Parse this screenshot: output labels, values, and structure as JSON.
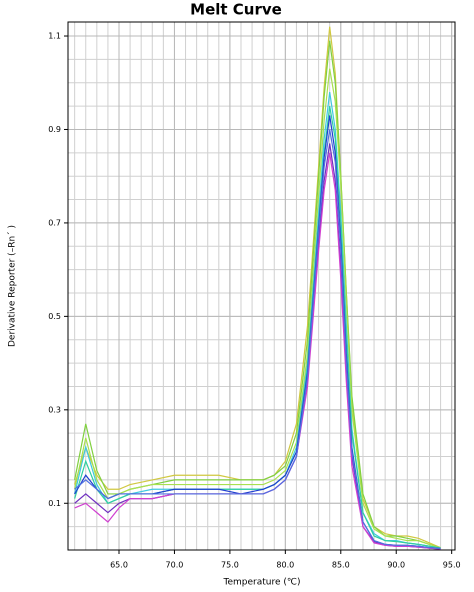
{
  "chart_data": {
    "type": "line",
    "title": "Melt Curve",
    "x_label": "Temperature (℃)",
    "y_label": "Derivative Reporter (–Rn´ )",
    "xlim": [
      60.4,
      95.3
    ],
    "ylim": [
      0.0,
      1.13
    ],
    "xticks": [
      {
        "value": 65,
        "label": "65.0"
      },
      {
        "value": 70,
        "label": "70.0"
      },
      {
        "value": 75,
        "label": "75.0"
      },
      {
        "value": 80,
        "label": "80.0"
      },
      {
        "value": 85,
        "label": "85.0"
      },
      {
        "value": 90,
        "label": "90.0"
      },
      {
        "value": 95,
        "label": "95.0"
      }
    ],
    "yticks": [
      0.1,
      0.3,
      0.5,
      0.7,
      0.9,
      1.1
    ],
    "minor_xticks": [
      61,
      62,
      63,
      64,
      65,
      66,
      67,
      68,
      69,
      70,
      71,
      72,
      73,
      74,
      75,
      76,
      77,
      78,
      79,
      80,
      81,
      82,
      83,
      84,
      85,
      86,
      87,
      88,
      89,
      90,
      91,
      92,
      93,
      94,
      95
    ],
    "minor_yticks": [
      0.05,
      0.1,
      0.15,
      0.2,
      0.25,
      0.3,
      0.35,
      0.4,
      0.45,
      0.5,
      0.55,
      0.6,
      0.65,
      0.7,
      0.75,
      0.8,
      0.85,
      0.9,
      0.95,
      1.0,
      1.05,
      1.1
    ],
    "grid": true,
    "x": [
      61,
      62,
      63,
      64,
      65,
      66,
      68,
      70,
      72,
      74,
      76,
      78,
      79,
      80,
      81,
      82,
      83,
      83.5,
      84,
      84.5,
      85,
      85.5,
      86,
      87,
      88,
      89,
      90,
      91,
      92,
      93,
      94
    ],
    "series": [
      {
        "color": "#d0c840",
        "values": [
          0.14,
          0.22,
          0.16,
          0.13,
          0.13,
          0.14,
          0.15,
          0.16,
          0.16,
          0.16,
          0.15,
          0.15,
          0.16,
          0.19,
          0.27,
          0.48,
          0.82,
          0.99,
          1.12,
          1.02,
          0.8,
          0.55,
          0.32,
          0.11,
          0.05,
          0.035,
          0.03,
          0.03,
          0.025,
          0.015,
          0.005
        ]
      },
      {
        "color": "#80d040",
        "values": [
          0.15,
          0.27,
          0.17,
          0.12,
          0.12,
          0.13,
          0.14,
          0.15,
          0.15,
          0.15,
          0.15,
          0.15,
          0.16,
          0.18,
          0.25,
          0.45,
          0.8,
          0.97,
          1.09,
          1.0,
          0.8,
          0.55,
          0.33,
          0.12,
          0.05,
          0.03,
          0.03,
          0.025,
          0.02,
          0.012,
          0.005
        ]
      },
      {
        "color": "#a8e050",
        "values": [
          0.13,
          0.24,
          0.15,
          0.11,
          0.12,
          0.13,
          0.14,
          0.14,
          0.14,
          0.14,
          0.14,
          0.14,
          0.15,
          0.17,
          0.23,
          0.42,
          0.76,
          0.92,
          1.03,
          0.96,
          0.78,
          0.53,
          0.3,
          0.1,
          0.045,
          0.03,
          0.025,
          0.02,
          0.02,
          0.012,
          0.005
        ]
      },
      {
        "color": "#40c8e0",
        "values": [
          0.12,
          0.22,
          0.14,
          0.1,
          0.11,
          0.12,
          0.13,
          0.13,
          0.13,
          0.13,
          0.13,
          0.13,
          0.14,
          0.16,
          0.22,
          0.4,
          0.72,
          0.88,
          0.98,
          0.9,
          0.72,
          0.48,
          0.26,
          0.08,
          0.035,
          0.02,
          0.02,
          0.015,
          0.012,
          0.008,
          0.004
        ]
      },
      {
        "color": "#30d0a0",
        "values": [
          0.11,
          0.19,
          0.13,
          0.1,
          0.11,
          0.12,
          0.12,
          0.13,
          0.13,
          0.13,
          0.13,
          0.13,
          0.14,
          0.16,
          0.21,
          0.39,
          0.7,
          0.85,
          0.95,
          0.88,
          0.7,
          0.46,
          0.25,
          0.08,
          0.03,
          0.02,
          0.018,
          0.015,
          0.012,
          0.008,
          0.004
        ]
      },
      {
        "color": "#2040d0",
        "values": [
          0.12,
          0.16,
          0.13,
          0.11,
          0.12,
          0.12,
          0.12,
          0.13,
          0.13,
          0.13,
          0.12,
          0.13,
          0.14,
          0.16,
          0.21,
          0.38,
          0.69,
          0.84,
          0.93,
          0.85,
          0.66,
          0.42,
          0.22,
          0.06,
          0.02,
          0.012,
          0.01,
          0.01,
          0.008,
          0.005,
          0.003
        ]
      },
      {
        "color": "#7030c0",
        "values": [
          0.1,
          0.12,
          0.1,
          0.08,
          0.1,
          0.11,
          0.11,
          0.12,
          0.12,
          0.12,
          0.12,
          0.12,
          0.13,
          0.15,
          0.2,
          0.36,
          0.66,
          0.79,
          0.87,
          0.79,
          0.6,
          0.38,
          0.2,
          0.05,
          0.018,
          0.01,
          0.008,
          0.008,
          0.006,
          0.004,
          0.002
        ]
      },
      {
        "color": "#d040d0",
        "values": [
          0.09,
          0.1,
          0.08,
          0.06,
          0.09,
          0.11,
          0.11,
          0.12,
          0.12,
          0.12,
          0.12,
          0.12,
          0.13,
          0.15,
          0.2,
          0.35,
          0.64,
          0.77,
          0.85,
          0.77,
          0.58,
          0.36,
          0.18,
          0.05,
          0.015,
          0.01,
          0.008,
          0.008,
          0.006,
          0.004,
          0.002
        ]
      },
      {
        "color": "#5070e0",
        "values": [
          0.13,
          0.15,
          0.13,
          0.11,
          0.12,
          0.12,
          0.12,
          0.12,
          0.12,
          0.12,
          0.12,
          0.12,
          0.13,
          0.15,
          0.2,
          0.37,
          0.68,
          0.82,
          0.9,
          0.83,
          0.64,
          0.4,
          0.21,
          0.06,
          0.02,
          0.012,
          0.01,
          0.01,
          0.008,
          0.005,
          0.003
        ]
      }
    ]
  }
}
